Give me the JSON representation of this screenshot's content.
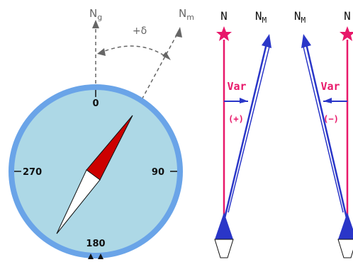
{
  "compass": {
    "grid_north_label": "N",
    "grid_north_sub": "g",
    "magnetic_north_label": "N",
    "magnetic_north_sub": "m",
    "declination_label": "+δ",
    "dial_labels": {
      "north": "0",
      "east": "90",
      "south": "180",
      "west": "270"
    }
  },
  "variation_panels": [
    {
      "true_north_label": "N",
      "magnetic_north_label": "N",
      "magnetic_north_sub": "M",
      "variation_label": "Var",
      "sign_label": "(+)"
    },
    {
      "true_north_label": "N",
      "magnetic_north_label": "N",
      "magnetic_north_sub": "M",
      "variation_label": "Var",
      "sign_label": "(−)"
    }
  ],
  "colors": {
    "dial_fill": "#add8e6",
    "dial_ring": "#6aa4e8",
    "needle_red": "#cc0000",
    "true_north_line": "#e8186a",
    "magnetic_line": "#2a36c8",
    "arc_gray": "#666666"
  }
}
